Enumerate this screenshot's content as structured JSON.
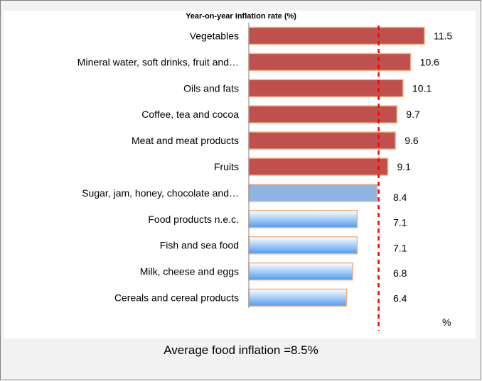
{
  "chart_data": {
    "type": "bar",
    "orientation": "horizontal",
    "title": "Year-on-year inflation rate (%)",
    "unit_label": "%",
    "categories": [
      "Vegetables",
      "Mineral water, soft drinks, fruit and…",
      "Oils and fats",
      "Coffee, tea and cocoa",
      "Meat and meat products",
      "Fruits",
      "Sugar, jam, honey, chocolate and…",
      "Food products n.e.c.",
      "Fish and sea food",
      "Milk, cheese and eggs",
      "Cereals and cereal products"
    ],
    "values": [
      11.5,
      10.6,
      10.1,
      9.7,
      9.6,
      9.1,
      8.4,
      7.1,
      7.1,
      6.8,
      6.4
    ],
    "value_labels": [
      "11.5",
      "10.6",
      "10.1",
      "9.7",
      "9.6",
      "9.1",
      "8.4",
      "7.1",
      "7.1",
      "6.8",
      "6.4"
    ],
    "xlim": [
      0,
      11.5
    ],
    "reference_line": {
      "value": 8.5,
      "label": "Average food inflation =8.5%",
      "style": "dashed",
      "color": "#ff0000"
    },
    "colors": {
      "above_average": "#c0504d",
      "above_average_border": "#f4b183",
      "sugar_bar": "#8db4e2",
      "below_average_top": "#ffffff",
      "below_average_bottom": "#4f9bef",
      "below_average_border": "#f4b183"
    },
    "grid": false,
    "legend": "none"
  }
}
